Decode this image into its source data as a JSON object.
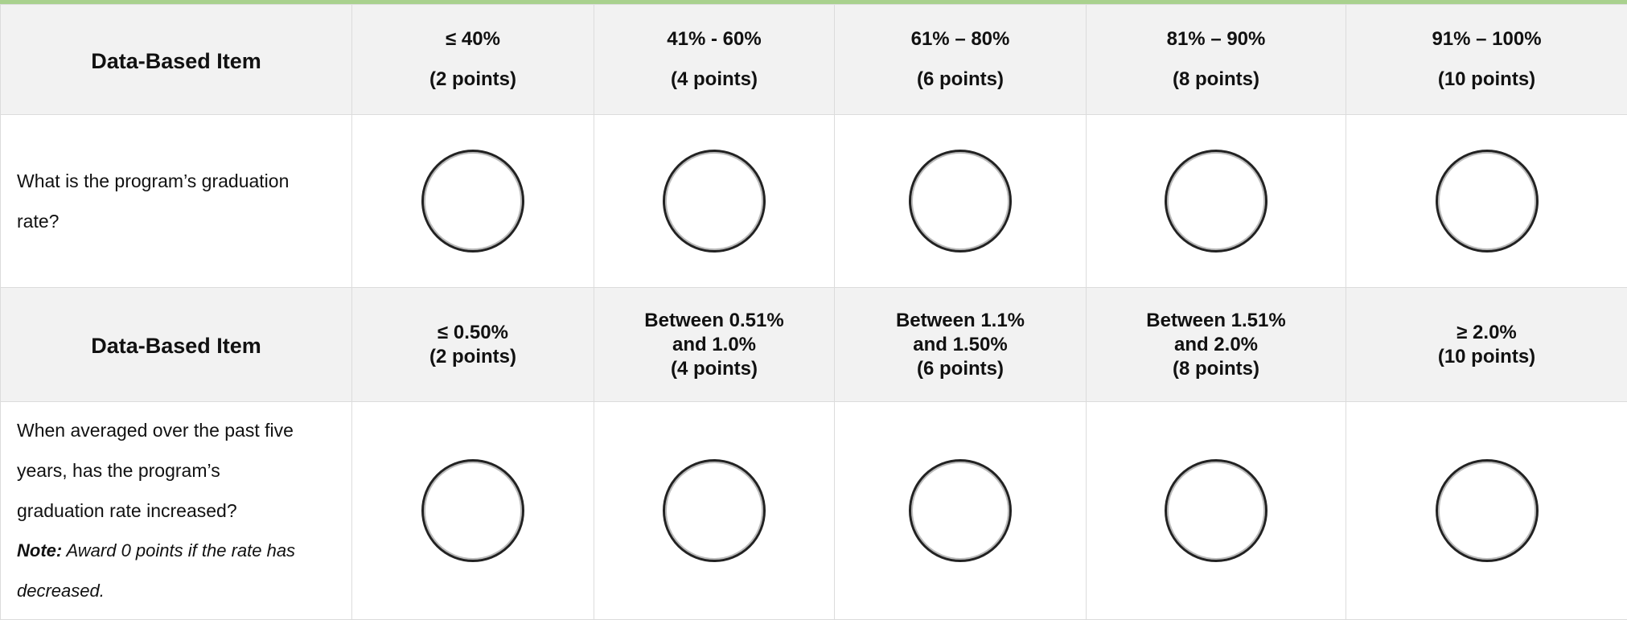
{
  "sections": [
    {
      "item_header": "Data-Based Item",
      "columns": [
        {
          "lines": [
            "≤ 40%",
            "(2 points)"
          ]
        },
        {
          "lines": [
            "41% - 60%",
            "(4 points)"
          ]
        },
        {
          "lines": [
            "61% – 80%",
            "(6 points)"
          ]
        },
        {
          "lines": [
            "81% – 90%",
            "(8 points)"
          ]
        },
        {
          "lines": [
            "91% – 100%",
            "(10 points)"
          ]
        }
      ],
      "question": {
        "lines": [
          "What is the program’s graduation",
          "rate?"
        ]
      }
    },
    {
      "item_header": "Data-Based Item",
      "columns": [
        {
          "lines": [
            "≤ 0.50%",
            "(2 points)"
          ]
        },
        {
          "lines": [
            "Between 0.51%",
            "and 1.0%",
            "(4 points)"
          ]
        },
        {
          "lines": [
            "Between 1.1%",
            "and 1.50%",
            "(6 points)"
          ]
        },
        {
          "lines": [
            "Between 1.51%",
            "and 2.0%",
            "(8 points)"
          ]
        },
        {
          "lines": [
            "≥ 2.0%",
            "(10 points)"
          ]
        }
      ],
      "question": {
        "lines": [
          "When averaged over the past five",
          "years, has the program’s",
          "graduation rate increased?"
        ],
        "note": {
          "label": "Note:",
          "text": "Award 0 points if the rate has",
          "text_end": "decreased."
        }
      }
    }
  ]
}
